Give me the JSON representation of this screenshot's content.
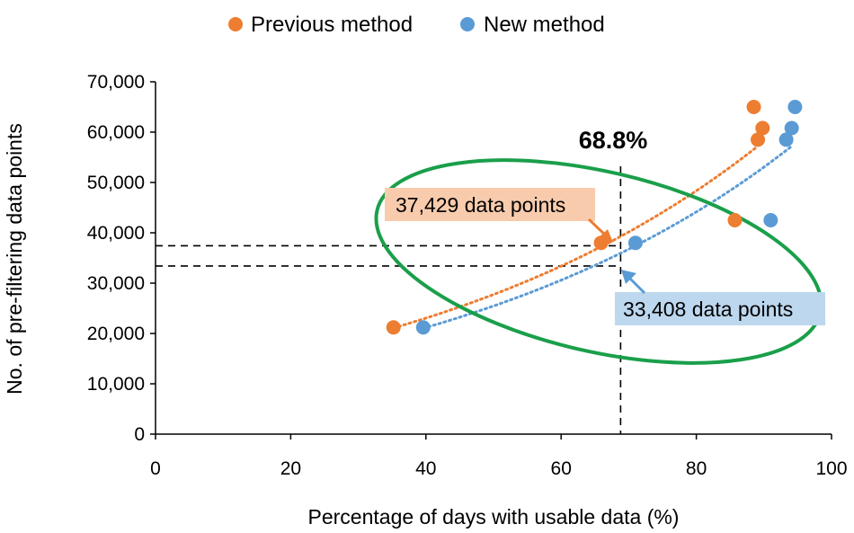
{
  "chart_data": {
    "type": "scatter",
    "xlabel": "Percentage of days with usable data (%)",
    "ylabel": "No. of pre-filtering data points",
    "xlim": [
      0,
      100
    ],
    "ylim": [
      0,
      70000
    ],
    "x_ticks": [
      "0",
      "20",
      "40",
      "60",
      "80",
      "100"
    ],
    "y_ticks": [
      "0",
      "10,000",
      "20,000",
      "30,000",
      "40,000",
      "50,000",
      "60,000",
      "70,000"
    ],
    "legend_position": "top-center",
    "grid": false,
    "series": [
      {
        "name": "Previous method",
        "color": "#ED7D31",
        "points": [
          {
            "x": 35.2,
            "y": 21200
          },
          {
            "x": 65.9,
            "y": 38000
          },
          {
            "x": 85.7,
            "y": 42500
          },
          {
            "x": 88.5,
            "y": 65000
          },
          {
            "x": 89.1,
            "y": 58500
          },
          {
            "x": 89.8,
            "y": 60800
          }
        ],
        "trendline": {
          "type": "exponential",
          "x_range": [
            35.2,
            89.1
          ],
          "style": "dotted"
        }
      },
      {
        "name": "New method",
        "color": "#5B9BD5",
        "points": [
          {
            "x": 39.6,
            "y": 21200
          },
          {
            "x": 71.0,
            "y": 38000
          },
          {
            "x": 91.0,
            "y": 42500
          },
          {
            "x": 93.3,
            "y": 58500
          },
          {
            "x": 94.1,
            "y": 60800
          },
          {
            "x": 94.6,
            "y": 65000
          }
        ],
        "trendline": {
          "type": "exponential",
          "x_range": [
            39.6,
            94.1
          ],
          "style": "dotted"
        }
      }
    ],
    "annotations": {
      "threshold_label": "68.8%",
      "threshold_x": 68.8,
      "previous_callout": "37,429 data points",
      "previous_value": 37429,
      "new_callout": "33,408 data points",
      "new_value": 33408,
      "ellipse_color": "#1A9F4A"
    }
  }
}
